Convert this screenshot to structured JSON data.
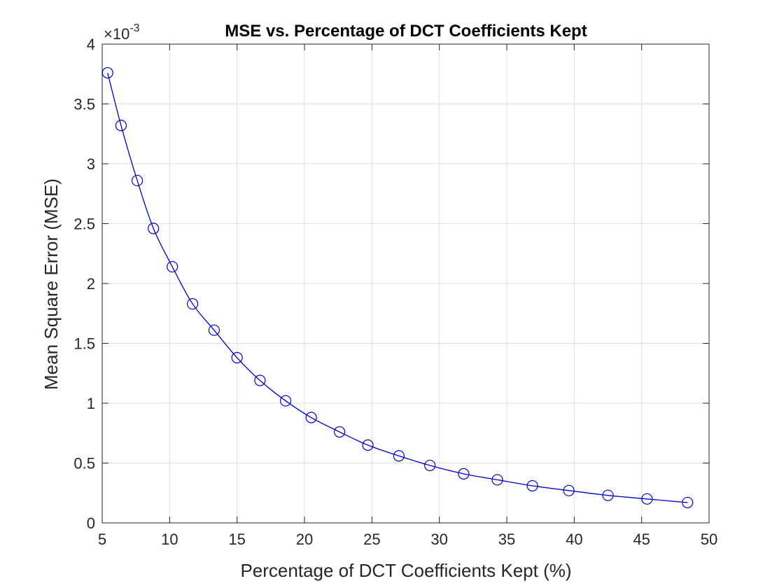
{
  "chart_data": {
    "type": "line",
    "title": "MSE vs. Percentage of DCT Coefficients Kept",
    "xlabel": "Percentage of DCT Coefficients Kept (%)",
    "ylabel": "Mean Square Error (MSE)",
    "xlim": [
      5,
      50
    ],
    "ylim": [
      0,
      4
    ],
    "y_scale_exponent": "-3",
    "y_scale_prefix": "×10",
    "grid": true,
    "x_ticks": [
      "5",
      "10",
      "15",
      "20",
      "25",
      "30",
      "35",
      "40",
      "45",
      "50"
    ],
    "y_ticks": [
      "0",
      "0.5",
      "1",
      "1.5",
      "2",
      "2.5",
      "3",
      "3.5",
      "4"
    ],
    "series": [
      {
        "name": "MSE",
        "color": "#0000cc",
        "marker": "circle",
        "x": [
          5.4,
          6.4,
          7.6,
          8.8,
          10.2,
          11.7,
          13.3,
          15.0,
          16.7,
          18.6,
          20.5,
          22.6,
          24.7,
          27.0,
          29.3,
          31.8,
          34.3,
          36.9,
          39.6,
          42.5,
          45.4,
          48.4
        ],
        "y": [
          3.76,
          3.32,
          2.86,
          2.46,
          2.14,
          1.83,
          1.61,
          1.38,
          1.19,
          1.02,
          0.88,
          0.76,
          0.65,
          0.56,
          0.48,
          0.41,
          0.36,
          0.31,
          0.27,
          0.23,
          0.2,
          0.17
        ]
      }
    ]
  }
}
